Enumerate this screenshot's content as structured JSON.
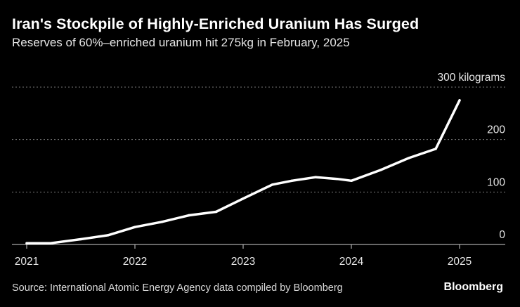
{
  "header": {
    "title": "Iran's Stockpile of Highly-Enriched Uranium Has Surged",
    "subtitle": "Reserves of 60%–enriched uranium hit 275kg in February, 2025"
  },
  "footer": {
    "source": "Source: International Atomic Energy Agency data compiled by Bloomberg",
    "brand": "Bloomberg"
  },
  "colors": {
    "background": "#000000",
    "line": "#ffffff",
    "grid": "#7a7a7a",
    "text": "#ffffff"
  },
  "chart_data": {
    "type": "line",
    "title": "Iran's Stockpile of Highly-Enriched Uranium Has Surged",
    "subtitle": "Reserves of 60%–enriched uranium hit 275kg in February, 2025",
    "xlabel": "",
    "ylabel": "",
    "xlim": [
      2021.0,
      2025.42
    ],
    "ylim": [
      0,
      300
    ],
    "grid": true,
    "legend": "none",
    "x_ticks": [
      {
        "value": 2021,
        "label": "2021"
      },
      {
        "value": 2022,
        "label": "2022"
      },
      {
        "value": 2023,
        "label": "2023"
      },
      {
        "value": 2024,
        "label": "2024"
      },
      {
        "value": 2025,
        "label": "2025"
      }
    ],
    "y_ticks": [
      {
        "value": 0,
        "label": "0"
      },
      {
        "value": 100,
        "label": "100"
      },
      {
        "value": 200,
        "label": "200"
      },
      {
        "value": 300,
        "label": "300 kilograms"
      }
    ],
    "series": [
      {
        "name": "",
        "x": [
          2021.0,
          2021.22,
          2021.5,
          2021.75,
          2022.0,
          2022.25,
          2022.5,
          2022.75,
          2023.0,
          2023.27,
          2023.45,
          2023.67,
          2023.87,
          2024.0,
          2024.27,
          2024.53,
          2024.78,
          2025.0
        ],
        "y": [
          2.4,
          2.4,
          10,
          17.6,
          33.2,
          43.1,
          55.6,
          62.3,
          87.5,
          114.1,
          121.5,
          128.3,
          124.9,
          121.5,
          142,
          164.7,
          182.3,
          274.8
        ]
      }
    ]
  }
}
